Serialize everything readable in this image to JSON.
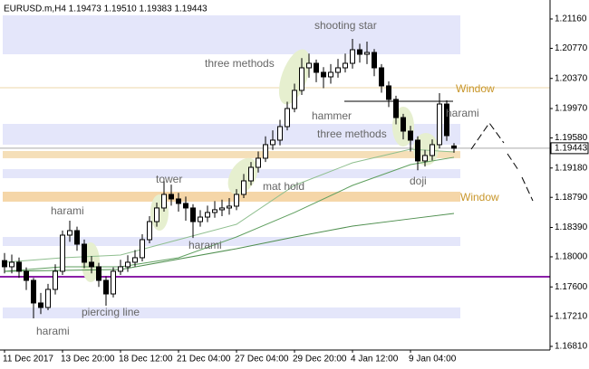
{
  "chart_data": {
    "type": "candlestick",
    "title": "EURUSD.m,H4  1.19473 1.19510 1.19383 1.19443",
    "categories": [
      "11 Dec 2017",
      null,
      null,
      null,
      null,
      null,
      null,
      null,
      "13 Dec 20:00",
      null,
      null,
      null,
      null,
      null,
      null,
      null,
      "18 Dec 12:00",
      null,
      null,
      null,
      null,
      null,
      null,
      null,
      "21 Dec 04:00",
      null,
      null,
      null,
      null,
      null,
      null,
      null,
      "27 Dec 04:00",
      null,
      null,
      null,
      null,
      null,
      null,
      null,
      "29 Dec 20:00",
      null,
      null,
      null,
      null,
      null,
      null,
      null,
      "4 Jan 12:00",
      null,
      null,
      null,
      null,
      null,
      null,
      null,
      "9 Jan 04:00",
      null,
      null,
      null,
      null,
      null,
      null
    ],
    "open": [
      1.1795,
      1.17868,
      1.17928,
      1.17808,
      1.17687,
      1.17387,
      1.17327,
      1.17567,
      1.17808,
      1.18288,
      1.18348,
      1.18168,
      1.17928,
      1.17868,
      1.17687,
      1.17507,
      1.17808,
      1.17868,
      1.17928,
      1.17988,
      1.18228,
      1.18468,
      1.18649,
      1.18829,
      1.18769,
      1.18709,
      1.18649,
      1.18468,
      1.18528,
      1.18589,
      1.18625,
      1.18649,
      1.18673,
      1.18829,
      1.19009,
      1.19189,
      1.1931,
      1.1949,
      1.1955,
      1.1973,
      1.1997,
      1.20211,
      1.20511,
      1.20571,
      1.20451,
      1.20391,
      1.20451,
      1.20511,
      1.20571,
      1.20751,
      1.20691,
      1.20715,
      1.20511,
      1.20271,
      1.20091,
      1.1985,
      1.1967,
      1.1955,
      1.19274,
      1.19346,
      1.1949,
      1.2003,
      1.19473
    ],
    "high": [
      1.1805,
      1.1803,
      1.1799,
      1.1786,
      1.1772,
      1.1752,
      1.1764,
      1.179,
      1.1835,
      1.1848,
      1.184,
      1.1823,
      1.1801,
      1.1792,
      1.1774,
      1.1786,
      1.1796,
      1.1802,
      1.1809,
      1.183,
      1.1854,
      1.1872,
      1.19009,
      1.1896,
      1.1885,
      1.188,
      1.187,
      1.1862,
      1.1868,
      1.1874,
      1.1876,
      1.1878,
      1.189,
      1.191,
      1.1926,
      1.194,
      1.196,
      1.1968,
      1.1982,
      1.2006,
      1.203,
      1.2064,
      1.207,
      1.2062,
      1.2052,
      1.2056,
      1.2063,
      1.207,
      1.20896,
      1.2083,
      1.2086,
      1.2076,
      1.2056,
      1.2033,
      1.2014,
      1.199,
      1.1974,
      1.196,
      1.1942,
      1.1956,
      1.20175,
      1.2008,
      1.1951
    ],
    "low": [
      1.1778,
      1.1778,
      1.1772,
      1.1756,
      1.17183,
      1.1724,
      1.1729,
      1.175,
      1.1776,
      1.182,
      1.1808,
      1.1785,
      1.1778,
      1.176,
      1.17351,
      1.1746,
      1.1776,
      1.178,
      1.1787,
      1.1794,
      1.1818,
      1.184,
      1.186,
      1.1868,
      1.186,
      1.1848,
      1.1825,
      1.184,
      1.1846,
      1.1852,
      1.1854,
      1.1856,
      1.1862,
      1.1878,
      1.1895,
      1.1912,
      1.1926,
      1.1942,
      1.1948,
      1.1968,
      1.1992,
      1.2015,
      1.2038,
      1.2032,
      1.2024,
      1.203,
      1.2038,
      1.2045,
      1.205,
      1.2058,
      1.2056,
      1.204,
      1.2018,
      1.1999,
      1.1976,
      1.1956,
      1.194,
      1.1915,
      1.192,
      1.1928,
      1.1944,
      1.1954,
      1.19383
    ],
    "close": [
      1.17868,
      1.17928,
      1.17808,
      1.17687,
      1.17387,
      1.17327,
      1.17567,
      1.17808,
      1.18288,
      1.18348,
      1.18168,
      1.17928,
      1.17868,
      1.17687,
      1.17507,
      1.17808,
      1.17868,
      1.17928,
      1.17988,
      1.18228,
      1.18468,
      1.18649,
      1.18829,
      1.18769,
      1.18709,
      1.18649,
      1.18468,
      1.18528,
      1.18589,
      1.18625,
      1.18649,
      1.18673,
      1.18829,
      1.19009,
      1.19189,
      1.1931,
      1.1949,
      1.1955,
      1.1973,
      1.1997,
      1.20211,
      1.20511,
      1.20571,
      1.20451,
      1.20391,
      1.20451,
      1.20511,
      1.20571,
      1.20751,
      1.20691,
      1.20715,
      1.20511,
      1.20271,
      1.20091,
      1.1985,
      1.1967,
      1.1955,
      1.19274,
      1.19346,
      1.1949,
      1.2003,
      1.1961,
      1.19443
    ],
    "moving_averages": [
      {
        "color": "#8fbf8f",
        "x": [
          0,
          8,
          16,
          24,
          32,
          40,
          48,
          56,
          62
        ],
        "values": [
          1.17928,
          1.17988,
          1.18024,
          1.18228,
          1.18432,
          1.18949,
          1.19249,
          1.1943,
          1.19394
        ]
      },
      {
        "color": "#5f9f5f",
        "x": [
          0,
          8,
          16,
          24,
          32,
          40,
          48,
          56,
          62
        ],
        "values": [
          1.17808,
          1.17868,
          1.17868,
          1.17988,
          1.18264,
          1.18589,
          1.18949,
          1.19225,
          1.19322
        ]
      },
      {
        "color": "#4f8f4f",
        "x": [
          0,
          16,
          32,
          40,
          48,
          56,
          62
        ],
        "values": [
          1.17808,
          1.17832,
          1.18108,
          1.18264,
          1.18408,
          1.18505,
          1.18577
        ]
      }
    ],
    "zones": [
      {
        "from": 1.21208,
        "to": 1.20691,
        "color": "#e4e6fa"
      },
      {
        "from": 1.19766,
        "to": 1.1949,
        "color": "#e4e6fa"
      },
      {
        "from": 1.19165,
        "to": 1.19045,
        "color": "#e4e6fa"
      },
      {
        "from": 1.18264,
        "to": 1.18144,
        "color": "#e4e6fa"
      },
      {
        "from": 1.17327,
        "to": 1.17183,
        "color": "#e4e6fa"
      },
      {
        "from": 1.19406,
        "to": 1.1931,
        "color": "#f5dfb8"
      },
      {
        "from": 1.18865,
        "to": 1.18733,
        "color": "#f5d6a8"
      }
    ],
    "levels": [
      {
        "value": 1.20247,
        "color": "#ecd7a8",
        "width": 1
      },
      {
        "value": 1.17735,
        "color": "#8b1fa8",
        "width": 2
      }
    ],
    "last_price": {
      "value": 1.19443,
      "label": "1.19443"
    },
    "ylim": [
      1.16762,
      1.21412
    ],
    "yticks": [
      {
        "value": 1.2116,
        "label": "1.21160"
      },
      {
        "value": 1.2077,
        "label": "1.20770"
      },
      {
        "value": 1.2037,
        "label": "1.20370"
      },
      {
        "value": 1.1997,
        "label": "1.19970"
      },
      {
        "value": 1.1958,
        "label": "1.19580"
      },
      {
        "value": 1.1918,
        "label": "1.19180"
      },
      {
        "value": 1.1879,
        "label": "1.18790"
      },
      {
        "value": 1.1839,
        "label": "1.18390"
      },
      {
        "value": 1.18,
        "label": "1.18000"
      },
      {
        "value": 1.176,
        "label": "1.17600"
      },
      {
        "value": 1.1721,
        "label": "1.17210"
      },
      {
        "value": 1.1681,
        "label": "1.16810"
      }
    ],
    "annotations": [
      "shooting star",
      "three methods",
      "hammer",
      "Window",
      "harami",
      "three methods",
      "tower",
      "mat hold",
      "doji",
      "Window",
      "harami",
      "harami",
      "piercing line",
      "harami"
    ]
  }
}
